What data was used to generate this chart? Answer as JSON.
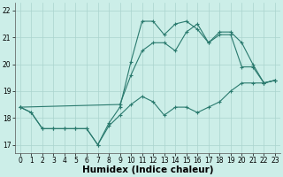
{
  "xlabel": "Humidex (Indice chaleur)",
  "bg_color": "#cceee8",
  "grid_color": "#aad4ce",
  "line_color": "#2a7a6e",
  "xlim": [
    -0.5,
    23.5
  ],
  "ylim": [
    16.7,
    22.3
  ],
  "xticks": [
    0,
    1,
    2,
    3,
    4,
    5,
    6,
    7,
    8,
    9,
    10,
    11,
    12,
    13,
    14,
    15,
    16,
    17,
    18,
    19,
    20,
    21,
    22,
    23
  ],
  "yticks": [
    17,
    18,
    19,
    20,
    21,
    22
  ],
  "line1_x": [
    0,
    1,
    2,
    3,
    4,
    5,
    6,
    7,
    8,
    9,
    10,
    11,
    12,
    13,
    14,
    15,
    16,
    17,
    18,
    19,
    20,
    21,
    22,
    23
  ],
  "line1_y": [
    18.4,
    18.2,
    17.6,
    17.6,
    17.6,
    17.6,
    17.6,
    17.0,
    17.7,
    18.1,
    18.5,
    18.8,
    18.6,
    18.1,
    18.4,
    18.4,
    18.2,
    18.4,
    18.6,
    19.0,
    19.3,
    19.3,
    19.3,
    19.4
  ],
  "line2_x": [
    0,
    1,
    2,
    3,
    4,
    5,
    6,
    7,
    8,
    9,
    10,
    11,
    12,
    13,
    14,
    15,
    16,
    17,
    18,
    19,
    20,
    21,
    22,
    23
  ],
  "line2_y": [
    18.4,
    18.2,
    17.6,
    17.6,
    17.6,
    17.6,
    17.6,
    17.0,
    17.8,
    18.4,
    20.1,
    21.6,
    21.6,
    21.1,
    21.5,
    21.6,
    21.3,
    20.8,
    21.1,
    21.1,
    19.9,
    19.9,
    19.3,
    19.4
  ],
  "line3_x": [
    0,
    9,
    10,
    11,
    12,
    13,
    14,
    15,
    16,
    17,
    18,
    19,
    20,
    21,
    22,
    23
  ],
  "line3_y": [
    18.4,
    18.5,
    19.6,
    20.5,
    20.8,
    20.8,
    20.5,
    21.2,
    21.5,
    20.8,
    21.2,
    21.2,
    20.8,
    20.0,
    19.3,
    19.4
  ],
  "tick_fontsize": 5.5,
  "xlabel_fontsize": 7.5
}
